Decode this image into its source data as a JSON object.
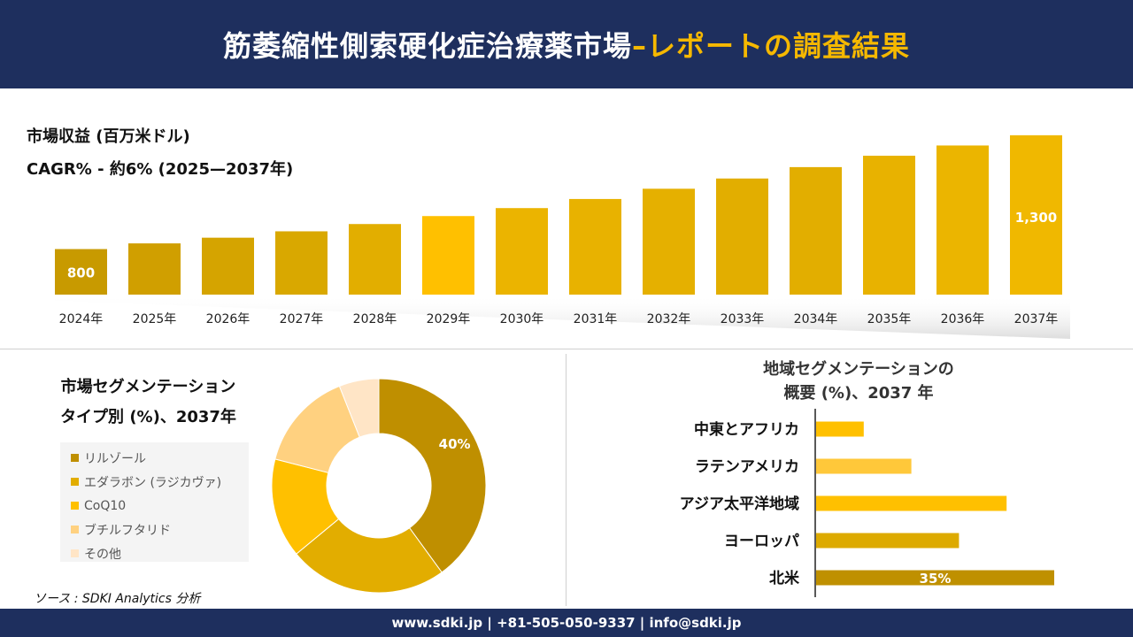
{
  "header": {
    "title_main": "筋萎縮性側索硬化症治療薬市場",
    "title_highlight": "–レポートの調査結果"
  },
  "market": {
    "label": "市場収益 (百万米ドル)",
    "cagr": "CAGR% - 約6% (2025—2037年)"
  },
  "colors": {
    "navy": "#1e2f5e",
    "gold_dark": "#c09000",
    "gold": "#e0aa00",
    "yellow": "#ffc000",
    "peach": "#ffcf80",
    "light_peach": "#ffe3c0"
  },
  "chart_data": [
    {
      "type": "bar",
      "categories": [
        "2024年",
        "2025年",
        "2026年",
        "2027年",
        "2028年",
        "2029年",
        "2030年",
        "2031年",
        "2032年",
        "2033年",
        "2034年",
        "2035年",
        "2036年",
        "2037年"
      ],
      "values": [
        800,
        825,
        850,
        878,
        910,
        945,
        980,
        1020,
        1065,
        1110,
        1160,
        1210,
        1255,
        1300
      ],
      "data_labels": {
        "0": "800",
        "13": "1,300"
      },
      "colors": [
        "#c89a00",
        "#d09f00",
        "#d5a400",
        "#d9a800",
        "#e2ae00",
        "#ffc000",
        "#ebb400",
        "#e8b200",
        "#e5b000",
        "#e2ae00",
        "#e2ae00",
        "#e8b200",
        "#ebb500",
        "#f0b800"
      ],
      "title": "",
      "xlabel": "",
      "ylabel": "",
      "ylim": [
        600,
        1350
      ]
    },
    {
      "type": "pie",
      "title_lines": [
        "市場セグメンテーション",
        "タイプ別 (%)、2037年"
      ],
      "labels": [
        "リルゾール",
        "エダラボン (ラジカヴァ)",
        "CoQ10",
        "ブチルフタリド",
        "その他"
      ],
      "values": [
        40,
        24,
        15,
        15,
        6
      ],
      "colors": [
        "#bf8f00",
        "#e2ad00",
        "#ffc000",
        "#ffd180",
        "#ffe5c6"
      ],
      "data_labels": {
        "0": "40%"
      }
    },
    {
      "type": "bar",
      "orientation": "horizontal",
      "title_lines": [
        "地域セグメンテーションの",
        "概要 (%)、2037 年"
      ],
      "categories": [
        "中東とアフリカ",
        "ラテンアメリカ",
        "アジア太平洋地域",
        "ヨーロッパ",
        "北米"
      ],
      "values": [
        7,
        14,
        28,
        21,
        35
      ],
      "colors": [
        "#ffc000",
        "#ffc83a",
        "#ffc000",
        "#ddaa00",
        "#bf9000"
      ],
      "data_labels": {
        "4": "35%"
      },
      "xlim": [
        0,
        35
      ]
    }
  ],
  "source": "ソース : SDKI Analytics 分析",
  "footer": {
    "contact": "www.sdki.jp | +81-505-050-9337 | info@sdki.jp"
  }
}
